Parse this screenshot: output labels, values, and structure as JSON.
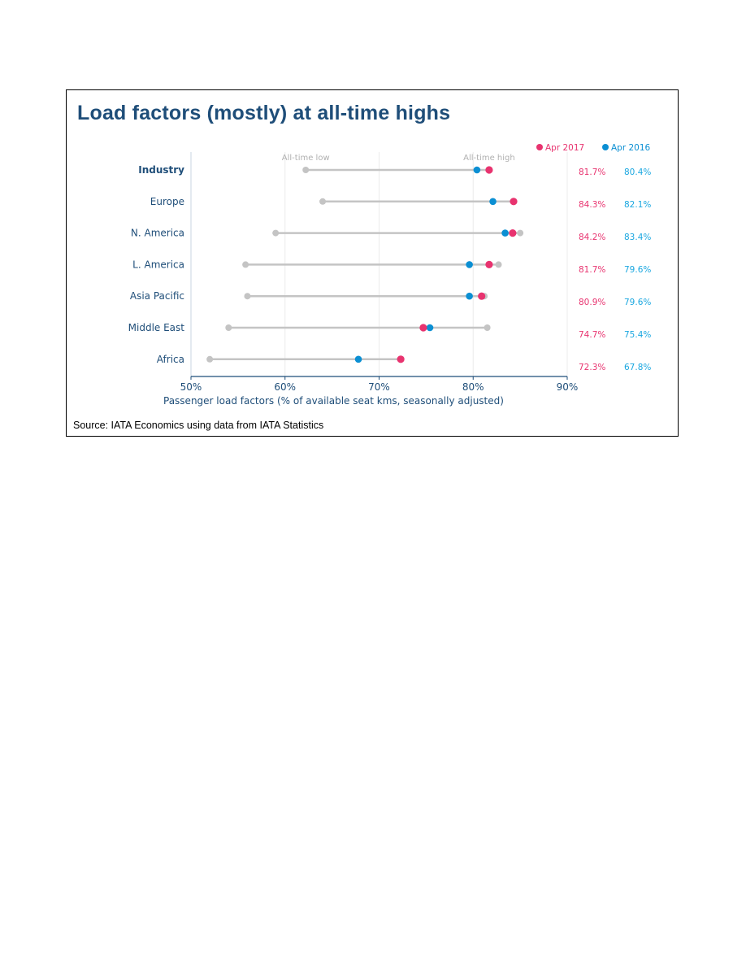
{
  "title": "Load factors (mostly) at all-time highs",
  "source": "Source: IATA Economics using data from IATA Statistics",
  "colors": {
    "apr2017": "#e8336f",
    "apr2016": "#0b8fd3",
    "range": "#c4c4c4",
    "axis": "#1f4e79"
  },
  "chart_data": {
    "type": "dot-range",
    "xlabel": "Passenger load factors (% of available seat kms, seasonally adjusted)",
    "xlim": [
      50,
      90
    ],
    "ticks": [
      50,
      60,
      70,
      80,
      90
    ],
    "tick_labels": [
      "50%",
      "60%",
      "70%",
      "80%",
      "90%"
    ],
    "grid": true,
    "annotations": {
      "low": "All-time low",
      "high": "All-time high"
    },
    "legend": {
      "position": "top-right",
      "entries": [
        {
          "name": "Apr 2017",
          "color": "#e8336f"
        },
        {
          "name": "Apr 2016",
          "color": "#0b8fd3"
        }
      ]
    },
    "categories": [
      "Industry",
      "Europe",
      "N. America",
      "L. America",
      "Asia Pacific",
      "Middle East",
      "Africa"
    ],
    "all_time_low": [
      62.2,
      64.0,
      59.0,
      55.8,
      56.0,
      54.0,
      52.0
    ],
    "all_time_high": [
      81.7,
      84.3,
      85.0,
      82.7,
      81.2,
      81.5,
      72.3
    ],
    "series": [
      {
        "name": "Apr 2017",
        "values": [
          81.7,
          84.3,
          84.2,
          81.7,
          80.9,
          74.7,
          72.3
        ],
        "labels": [
          "81.7%",
          "84.3%",
          "84.2%",
          "81.7%",
          "80.9%",
          "74.7%",
          "72.3%"
        ]
      },
      {
        "name": "Apr 2016",
        "values": [
          80.4,
          82.1,
          83.4,
          79.6,
          79.6,
          75.4,
          67.8
        ],
        "labels": [
          "80.4%",
          "82.1%",
          "83.4%",
          "79.6%",
          "79.6%",
          "75.4%",
          "67.8%"
        ]
      }
    ]
  }
}
